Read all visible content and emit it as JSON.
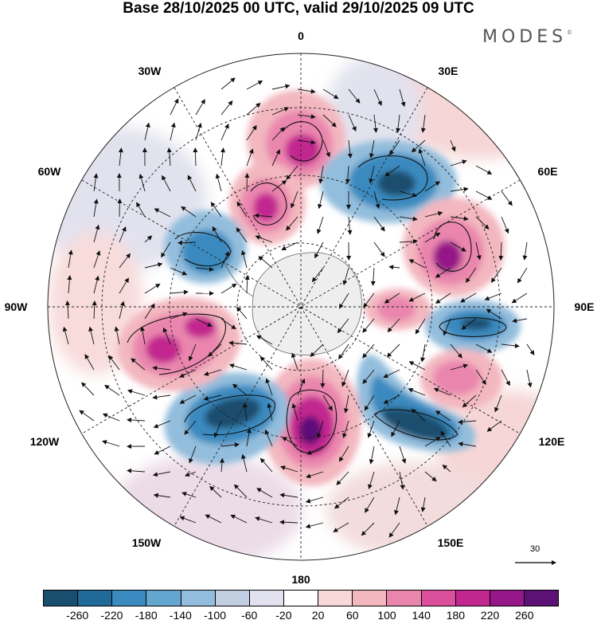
{
  "title": "Base 28/10/2025 00 UTC, valid 29/10/2025 09 UTC",
  "brand": "MODES",
  "brand_mark": "©",
  "longitude_labels": {
    "lon_0": "0",
    "lon_30e": "30E",
    "lon_60e": "60E",
    "lon_90e": "90E",
    "lon_120e": "120E",
    "lon_150e": "150E",
    "lon_180": "180",
    "lon_150w": "150W",
    "lon_120w": "120W",
    "lon_90w": "90W",
    "lon_60w": "60W",
    "lon_30w": "30W"
  },
  "reference_vector": {
    "label": "30"
  },
  "colorbar": {
    "colors": [
      "#1a4e6e",
      "#1f6a98",
      "#3b8abf",
      "#63a6d0",
      "#93bddc",
      "#c2cfe2",
      "#e2e2ee",
      "#ffffff",
      "#f8d8d8",
      "#f3b7bf",
      "#ea86ae",
      "#dc4f9c",
      "#c2268f",
      "#961788",
      "#5c1177"
    ],
    "ticks": [
      "-260",
      "-220",
      "-180",
      "-140",
      "-100",
      "-60",
      "-20",
      "20",
      "60",
      "100",
      "140",
      "180",
      "220",
      "260"
    ]
  },
  "chart_data": {
    "type": "heatmap",
    "title": "Base 28/10/2025 00 UTC, valid 29/10/2025 09 UTC",
    "projection": "south polar stereographic",
    "colorbar_levels": [
      -260,
      -220,
      -180,
      -140,
      -100,
      -60,
      -20,
      20,
      60,
      100,
      140,
      180,
      220,
      260
    ],
    "anomaly_centers": [
      {
        "name": "positive anomaly near 10E",
        "sign": "+",
        "peak": 220
      },
      {
        "name": "positive anomaly near 355E",
        "sign": "+",
        "peak": 220
      },
      {
        "name": "negative anomaly near 40E",
        "sign": "-",
        "peak": -220
      },
      {
        "name": "positive anomaly near 65E",
        "sign": "+",
        "peak": 220
      },
      {
        "name": "positive anomaly near 80E",
        "sign": "+",
        "peak": 140
      },
      {
        "name": "negative anomaly near 95E",
        "sign": "-",
        "peak": -220
      },
      {
        "name": "positive anomaly near 110E",
        "sign": "+",
        "peak": 180
      },
      {
        "name": "negative anomaly near 135E",
        "sign": "-",
        "peak": -260
      },
      {
        "name": "positive anomaly near 175E",
        "sign": "+",
        "peak": 260
      },
      {
        "name": "negative anomaly near 140W",
        "sign": "-",
        "peak": -260
      },
      {
        "name": "positive anomaly near 105W",
        "sign": "+",
        "peak": 220
      },
      {
        "name": "negative anomaly near 50W",
        "sign": "-",
        "peak": -180
      }
    ],
    "reference_vector": 30
  }
}
